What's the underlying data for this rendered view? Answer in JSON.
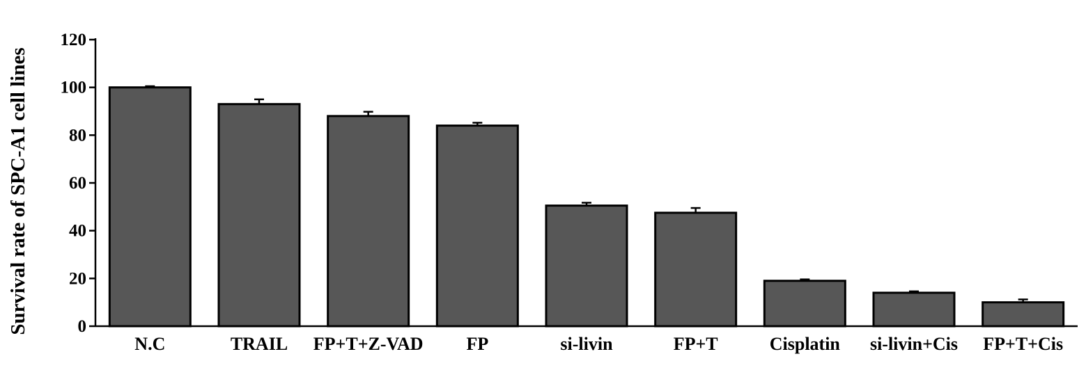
{
  "chart_data": {
    "type": "bar",
    "title": "",
    "xlabel": "",
    "ylabel": "Survival rate of SPC-A1 cell lines",
    "ylim": [
      0,
      120
    ],
    "yticks": [
      "0",
      "20",
      "40",
      "60",
      "80",
      "100",
      "120"
    ],
    "categories": [
      "N.C",
      "TRAIL",
      "FP+T+Z-VAD",
      "FP",
      "si-livin",
      "FP+T",
      "Cisplatin",
      "si-livin+Cis",
      "FP+T+Cis"
    ],
    "values": [
      100,
      93,
      88,
      84,
      50.5,
      47.5,
      19,
      14,
      10
    ],
    "errors": [
      0.5,
      2,
      1.8,
      1.2,
      1.2,
      2,
      0.6,
      0.6,
      1.2
    ],
    "grid": false,
    "colors": {
      "bar": "#575757",
      "outline": "#000000"
    }
  }
}
